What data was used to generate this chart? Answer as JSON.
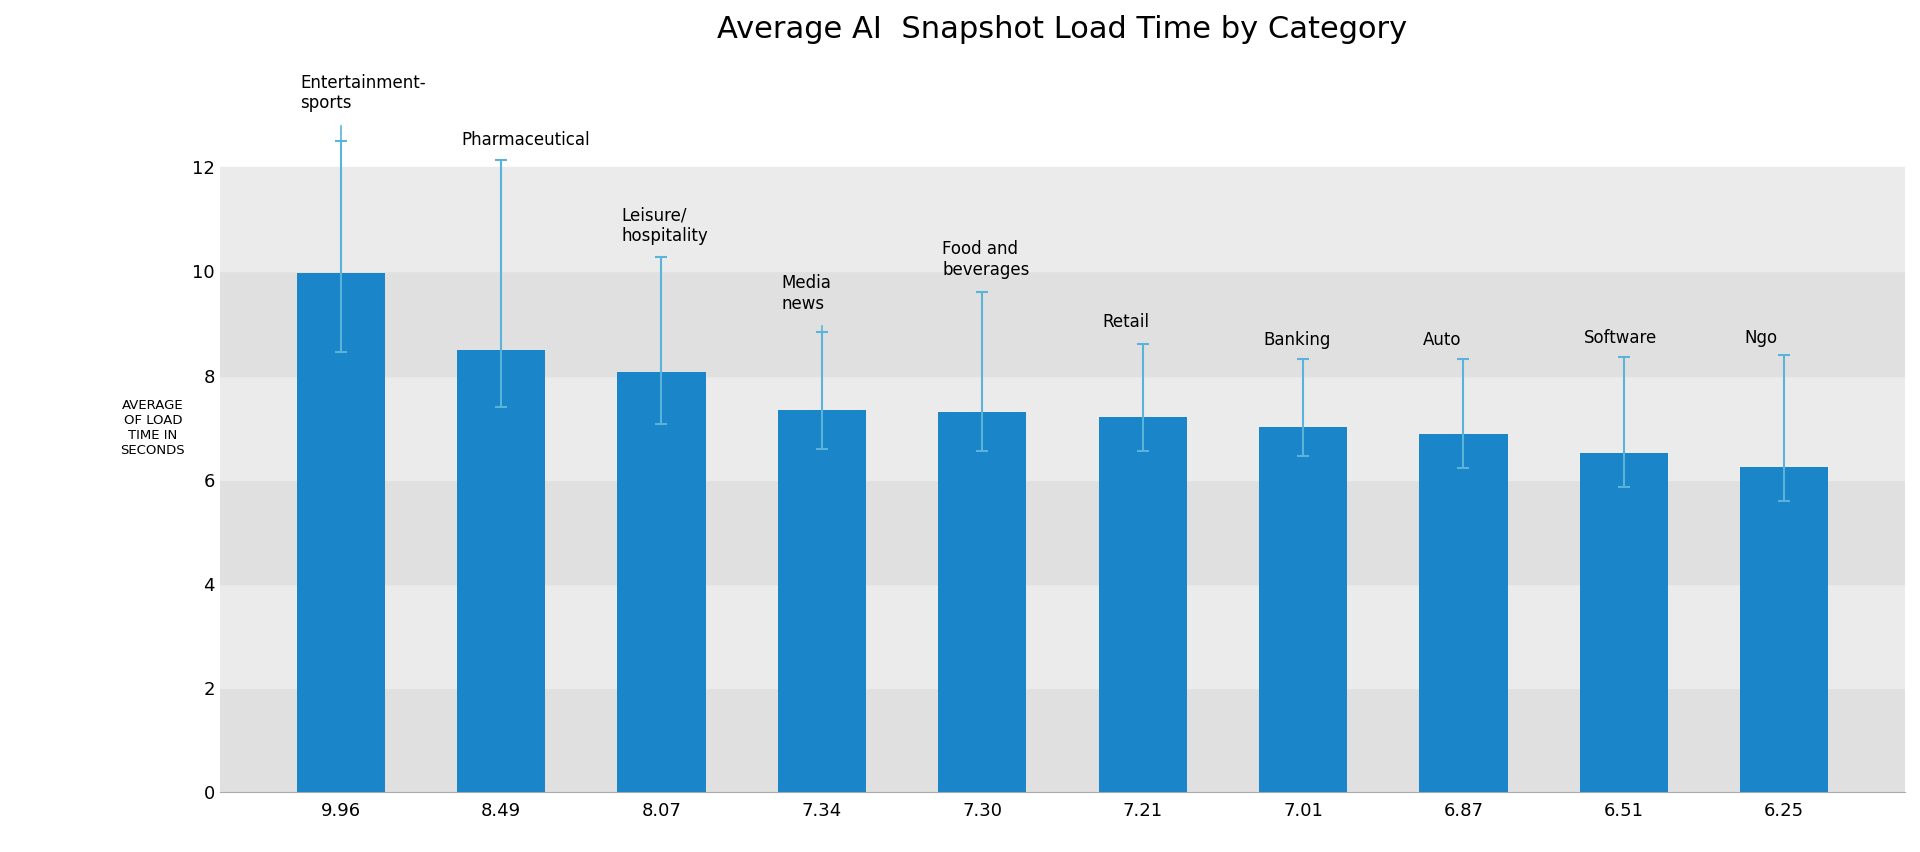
{
  "title": "Average AI  Snapshot Load Time by Category",
  "ylabel": "AVERAGE\nOF LOAD\nTIME IN\nSECONDS",
  "categories": [
    "Entertainment-\nsports",
    "Pharmaceutical",
    "Leisure/\nhospitality",
    "Media\nnews",
    "Food and\nbeverages",
    "Retail",
    "Banking",
    "Auto",
    "Software",
    "Ngo"
  ],
  "values": [
    9.96,
    8.49,
    8.07,
    7.34,
    7.3,
    7.21,
    7.01,
    6.87,
    6.51,
    6.25
  ],
  "x_labels": [
    "9.96",
    "8.49",
    "8.07",
    "7.34",
    "7.30",
    "7.21",
    "7.01",
    "6.87",
    "6.51",
    "6.25"
  ],
  "error_upper": [
    2.55,
    3.65,
    2.2,
    1.5,
    2.3,
    1.4,
    1.3,
    1.45,
    1.85,
    2.15
  ],
  "error_lower": [
    1.5,
    1.1,
    1.0,
    0.75,
    0.75,
    0.65,
    0.55,
    0.65,
    0.65,
    0.65
  ],
  "bar_color": "#1a85c8",
  "errorbar_color": "#5ab4d9",
  "annotation_line_color": "#5ab4d9",
  "bg_color": "#ffffff",
  "stripe_colors": [
    "#e0e0e0",
    "#ebebeb"
  ],
  "ylim": [
    0,
    14.0
  ],
  "yticks": [
    0,
    2,
    4,
    6,
    8,
    10,
    12
  ],
  "title_fontsize": 22,
  "ylabel_fontsize": 9.5,
  "label_fontsize": 12,
  "value_fontsize": 13
}
